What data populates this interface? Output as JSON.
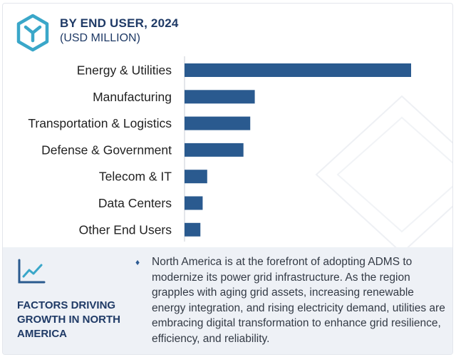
{
  "header": {
    "title": "BY END USER, 2024",
    "subtitle": "(USD MILLION)",
    "logo_icon": "hexagon-logo-icon"
  },
  "chart_data": {
    "type": "bar",
    "orientation": "horizontal",
    "title": "BY END USER, 2024",
    "subtitle": "(USD MILLION)",
    "xlabel": "",
    "ylabel": "",
    "categories": [
      "Energy & Utilities",
      "Manufacturing",
      "Transportation & Logistics",
      "Defense & Government",
      "Telecom & IT",
      "Data Centers",
      "Other End Users"
    ],
    "values": [
      100,
      31,
      29,
      26,
      10,
      8,
      7
    ],
    "xlim": [
      0,
      100
    ],
    "grid": false,
    "bar_color": "#2a5a8f"
  },
  "panel": {
    "icon": "trend-line-icon",
    "title": "FACTORS DRIVING GROWTH IN NORTH AMERICA",
    "bullet": "♦",
    "text": "North America is at the forefront of adopting ADMS to modernize its power grid infrastructure. As the region grapples with aging grid assets, increasing renewable energy integration, and rising electricity demand, utilities are embracing digital transformation to enhance grid resilience, efficiency, and reliability."
  },
  "colors": {
    "accent": "#2a5a8f",
    "title": "#1f3a66",
    "panel_bg": "#eef1f6",
    "logo": "#3aa7c9"
  }
}
